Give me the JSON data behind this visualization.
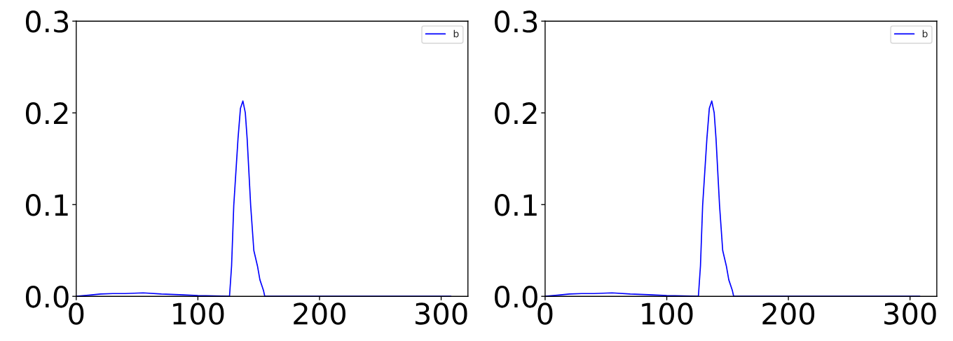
{
  "chart_data": [
    {
      "type": "line",
      "x": [
        0,
        10,
        20,
        30,
        40,
        55,
        70,
        85,
        100,
        126,
        127.7,
        129.5,
        133,
        135,
        137,
        139,
        140.5,
        143.4,
        146,
        149,
        151,
        153,
        154,
        155,
        200,
        308
      ],
      "series": [
        {
          "name": "b",
          "color": "#0000ff",
          "values": [
            0,
            0.0012,
            0.0025,
            0.003,
            0.003,
            0.0038,
            0.0025,
            0.0018,
            0.0008,
            0,
            0.033,
            0.099,
            0.172,
            0.205,
            0.213,
            0.2,
            0.172,
            0.099,
            0.05,
            0.033,
            0.018,
            0.01,
            0.006,
            0,
            0,
            0
          ]
        }
      ],
      "xlim": [
        0,
        322
      ],
      "xticks": [
        0,
        100,
        200,
        300
      ],
      "ylim": [
        0,
        0.3
      ],
      "yticks": [
        {
          "value": 0,
          "label": "0.0"
        },
        0.1,
        0.2,
        0.3
      ],
      "legend": "top right",
      "grid": false
    },
    {
      "type": "line",
      "x": [
        0,
        10,
        20,
        30,
        40,
        55,
        70,
        85,
        100,
        126,
        127.7,
        129.5,
        133,
        135,
        137,
        139,
        140.5,
        143.4,
        146,
        149,
        151,
        153,
        154,
        155,
        200,
        308
      ],
      "series": [
        {
          "name": "b",
          "color": "#0000ff",
          "values": [
            0,
            0.0012,
            0.0025,
            0.003,
            0.003,
            0.0038,
            0.0025,
            0.0018,
            0.0008,
            0,
            0.033,
            0.099,
            0.172,
            0.205,
            0.213,
            0.2,
            0.172,
            0.099,
            0.05,
            0.033,
            0.018,
            0.01,
            0.006,
            0,
            0,
            0
          ]
        }
      ],
      "xlim": [
        0,
        322
      ],
      "xticks": [
        0,
        100,
        200,
        300
      ],
      "ylim": [
        0,
        0.3
      ],
      "yticks": [
        {
          "value": 0,
          "label": "0.0"
        },
        0.1,
        0.2,
        0.3
      ],
      "legend": "top right",
      "grid": false
    }
  ]
}
